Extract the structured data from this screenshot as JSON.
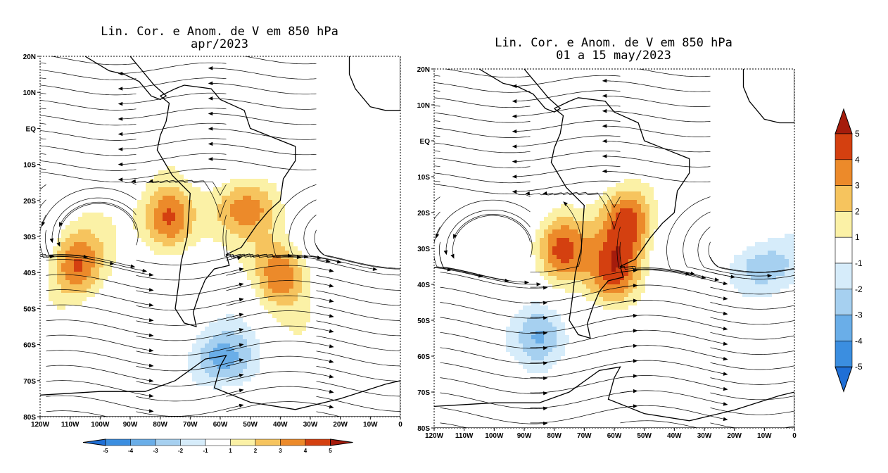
{
  "chart_data": [
    {
      "type": "heatmap",
      "variant": "streamlines + shaded anomaly map",
      "title_line1": "Lin. Cor. e Anom. de V em 850 hPa",
      "title_line2": "apr/2023",
      "variable": "V wind anomaly at 850 hPa",
      "lon_range": [
        -120,
        0
      ],
      "lat_range": [
        -80,
        20
      ],
      "x_tick_labels": [
        "120W",
        "110W",
        "100W",
        "90W",
        "80W",
        "70W",
        "60W",
        "50W",
        "40W",
        "30W",
        "20W",
        "10W",
        "0"
      ],
      "y_tick_labels": [
        "20N",
        "10N",
        "EQ",
        "10S",
        "20S",
        "30S",
        "40S",
        "50S",
        "60S",
        "70S",
        "80S"
      ],
      "features": [
        {
          "label": "positive max west of Chile",
          "lon": -77,
          "lat": -25,
          "value": 5
        },
        {
          "label": "positive band SE Brazil",
          "lon": -50,
          "lat": -22,
          "value": 3
        },
        {
          "label": "positive band S Atlantic",
          "lon": -40,
          "lat": -40,
          "value": 4
        },
        {
          "label": "positive cell SE Pacific",
          "lon": -108,
          "lat": -38,
          "value": 4
        },
        {
          "label": "negative band Southern Ocean",
          "lon": -60,
          "lat": -64,
          "value": -3
        }
      ]
    },
    {
      "type": "heatmap",
      "variant": "streamlines + shaded anomaly map",
      "title_line1": "Lin. Cor. e Anom. de V em 850 hPa",
      "title_line2": "01 a 15 may/2023",
      "variable": "V wind anomaly at 850 hPa",
      "lon_range": [
        -120,
        0
      ],
      "lat_range": [
        -80,
        20
      ],
      "x_tick_labels": [
        "120W",
        "110W",
        "100W",
        "90W",
        "80W",
        "70W",
        "60W",
        "50W",
        "40W",
        "30W",
        "20W",
        "10W",
        "0"
      ],
      "y_tick_labels": [
        "20N",
        "10N",
        "EQ",
        "10S",
        "20S",
        "30S",
        "40S",
        "50S",
        "60S",
        "70S",
        "80S"
      ],
      "features": [
        {
          "label": "positive max west of Chile",
          "lon": -78,
          "lat": -30,
          "value": 5
        },
        {
          "label": "positive max S Brazil",
          "lon": -55,
          "lat": -22,
          "value": 4
        },
        {
          "label": "positive cell off Uruguay",
          "lon": -60,
          "lat": -37,
          "value": 4
        },
        {
          "label": "negative region S Pacific",
          "lon": -85,
          "lat": -55,
          "value": -4
        },
        {
          "label": "negative region S Atlantic",
          "lon": -12,
          "lat": -35,
          "value": -3
        }
      ]
    }
  ],
  "colorbar": {
    "levels": [
      "-5",
      "-4",
      "-3",
      "-2",
      "-1",
      "1",
      "2",
      "3",
      "4",
      "5"
    ],
    "colors": [
      "#1f6fd6",
      "#3b8ee0",
      "#6aaee8",
      "#a6d0f0",
      "#d6ecfa",
      "#ffffff",
      "#fbf1a6",
      "#f6c45e",
      "#ec8a2a",
      "#d44010",
      "#a51c0c"
    ]
  },
  "colors": {
    "ocean_bg": "#ffffff",
    "streamline": "#000000",
    "coast": "#000000"
  }
}
